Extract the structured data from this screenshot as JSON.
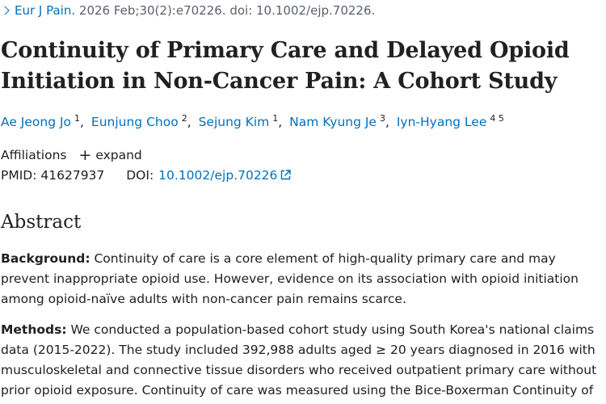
{
  "citation": {
    "journal": "Eur J Pain.",
    "details": "2026 Feb;30(2):e70226. doi: 10.1002/ejp.70226."
  },
  "title": "Continuity of Primary Care and Delayed Opioid Initiation in Non-Cancer Pain: A Cohort Study",
  "authors": [
    {
      "name": "Ae Jeong Jo",
      "aff": "1"
    },
    {
      "name": "Eunjung Choo",
      "aff": "2"
    },
    {
      "name": "Sejung Kim",
      "aff": "1"
    },
    {
      "name": "Nam Kyung Je",
      "aff": "3"
    },
    {
      "name": "Iyn-Hyang Lee",
      "aff": "4 5"
    }
  ],
  "affiliations": {
    "label": "Affiliations",
    "expand": "expand"
  },
  "identifiers": {
    "pmid_label": "PMID:",
    "pmid": "41627937",
    "doi_label": "DOI:",
    "doi": "10.1002/ejp.70226"
  },
  "abstract": {
    "heading": "Abstract",
    "background_label": "Background:",
    "background_text": "Continuity of care is a core element of high-quality primary care and may prevent inappropriate opioid use. However, evidence on its association with opioid initiation among opioid-naïve adults with non-cancer pain remains scarce.",
    "methods_label": "Methods:",
    "methods_text": "We conducted a population-based cohort study using South Korea's national claims data (2015-2022). The study included 392,988 adults aged ≥ 20 years diagnosed in 2016 with musculoskeletal and connective tissue disorders who received outpatient primary care without prior opioid exposure. Continuity of care was measured using the Bice-Boxerman Continuity of Care Index"
  },
  "icons": {
    "journal_chevron": "chevron-right-icon",
    "expand": "plus-icon",
    "doi_link": "external-link-icon"
  },
  "colors": {
    "link": "#0071bc",
    "text": "#212121",
    "muted": "#5b616b"
  }
}
